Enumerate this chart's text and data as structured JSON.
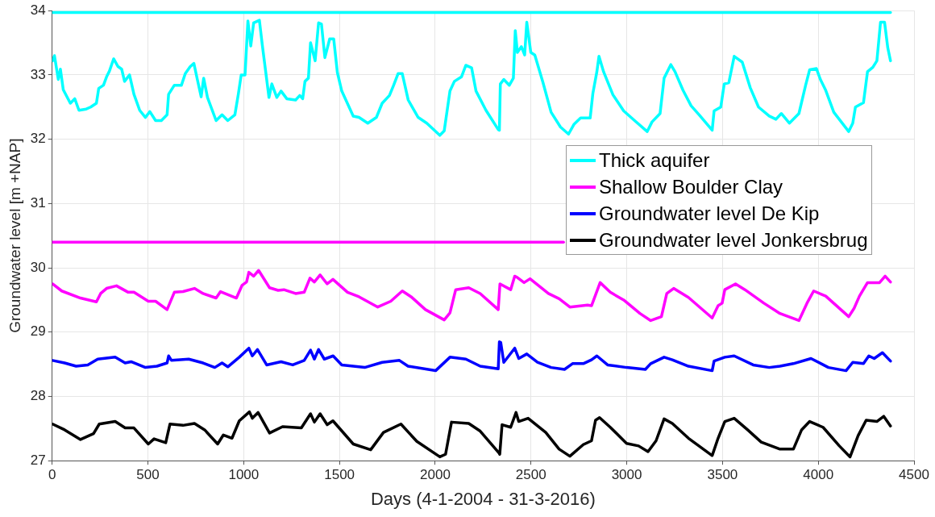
{
  "chart_data": {
    "type": "line",
    "xlabel": "Days (4-1-2004 - 31-3-2016)",
    "ylabel": "Groundwater level [m +NAP]",
    "xlim": [
      0,
      4500
    ],
    "xticks": [
      0,
      500,
      1000,
      1500,
      2000,
      2500,
      3000,
      3500,
      4000,
      4500
    ],
    "ylim": [
      27,
      34
    ],
    "yticks": [
      27,
      28,
      29,
      30,
      31,
      32,
      33,
      34
    ],
    "grid": true,
    "legend": "right",
    "marker": "none",
    "line_style": "solid",
    "series": [
      {
        "color": "#00ffff",
        "x": [
          0,
          4377
        ],
        "values": [
          33.97,
          33.97
        ]
      },
      {
        "color": "#ff00ff",
        "x": [
          0,
          2670
        ],
        "values": [
          30.4,
          30.4
        ]
      },
      {
        "name": "Thick aquifer",
        "color": "#00ffff",
        "x": [
          2,
          12,
          32,
          43,
          58,
          95,
          118,
          140,
          178,
          201,
          231,
          243,
          268,
          284,
          299,
          321,
          344,
          363,
          378,
          404,
          427,
          457,
          487,
          510,
          540,
          570,
          600,
          608,
          638,
          675,
          695,
          721,
          740,
          758,
          778,
          791,
          811,
          856,
          887,
          917,
          954,
          972,
          987,
          1007,
          1022,
          1037,
          1052,
          1082,
          1097,
          1132,
          1147,
          1173,
          1195,
          1225,
          1271,
          1293,
          1308,
          1320,
          1338,
          1349,
          1373,
          1391,
          1406,
          1424,
          1449,
          1470,
          1489,
          1512,
          1572,
          1602,
          1648,
          1693,
          1723,
          1761,
          1783,
          1806,
          1828,
          1859,
          1911,
          1956,
          2024,
          2047,
          2077,
          2100,
          2137,
          2160,
          2190,
          2213,
          2265,
          2329,
          2335,
          2340,
          2358,
          2387,
          2408,
          2418,
          2429,
          2450,
          2467,
          2478,
          2499,
          2520,
          2562,
          2605,
          2654,
          2696,
          2724,
          2759,
          2809,
          2823,
          2844,
          2855,
          2879,
          2928,
          2984,
          3041,
          3107,
          3132,
          3174,
          3195,
          3230,
          3252,
          3294,
          3336,
          3378,
          3446,
          3456,
          3491,
          3509,
          3533,
          3561,
          3603,
          3645,
          3688,
          3744,
          3779,
          3807,
          3849,
          3899,
          3934,
          3955,
          3990,
          4011,
          4039,
          4081,
          4159,
          4180,
          4194,
          4236,
          4257,
          4285,
          4306,
          4325,
          4346,
          4363,
          4377
        ],
        "values": [
          33.22,
          33.3,
          32.93,
          33.09,
          32.77,
          32.56,
          32.63,
          32.45,
          32.47,
          32.5,
          32.56,
          32.79,
          32.84,
          32.97,
          33.06,
          33.25,
          33.13,
          33.09,
          32.9,
          33,
          32.7,
          32.45,
          32.34,
          32.43,
          32.29,
          32.29,
          32.38,
          32.7,
          32.84,
          32.84,
          33.02,
          33.13,
          33.18,
          32.93,
          32.66,
          32.95,
          32.65,
          32.29,
          32.38,
          32.29,
          32.38,
          32.7,
          33,
          33,
          33.84,
          33.45,
          33.81,
          33.85,
          33.47,
          32.65,
          32.86,
          32.65,
          32.75,
          32.63,
          32.61,
          32.68,
          32.63,
          32.9,
          32.95,
          33.5,
          33.22,
          33.81,
          33.79,
          33.27,
          33.56,
          33.56,
          33.04,
          32.75,
          32.36,
          32.34,
          32.25,
          32.34,
          32.56,
          32.68,
          32.84,
          33.02,
          33.02,
          32.61,
          32.34,
          32.25,
          32.06,
          32.13,
          32.75,
          32.9,
          32.97,
          33.15,
          33.11,
          32.75,
          32.45,
          32.15,
          32.14,
          32.86,
          32.93,
          32.84,
          32.95,
          33.69,
          33.35,
          33.44,
          33.31,
          33.82,
          33.35,
          33.31,
          32.89,
          32.42,
          32.19,
          32.08,
          32.23,
          32.33,
          32.33,
          32.71,
          33.05,
          33.29,
          33.05,
          32.69,
          32.44,
          32.29,
          32.12,
          32.27,
          32.4,
          32.95,
          33.16,
          33.05,
          32.76,
          32.52,
          32.38,
          32.14,
          32.44,
          32.5,
          32.86,
          32.88,
          33.29,
          33.2,
          32.8,
          32.5,
          32.36,
          32.31,
          32.4,
          32.25,
          32.4,
          32.84,
          33.08,
          33.1,
          32.93,
          32.76,
          32.42,
          32.12,
          32.25,
          32.5,
          32.57,
          33.05,
          33.12,
          33.22,
          33.82,
          33.82,
          33.42,
          33.22
        ]
      },
      {
        "name": "Shallow Boulder Clay",
        "color": "#ff00ff",
        "x": [
          2,
          50,
          148,
          231,
          253,
          284,
          336,
          397,
          427,
          502,
          540,
          600,
          638,
          683,
          743,
          788,
          856,
          879,
          962,
          992,
          1015,
          1027,
          1052,
          1078,
          1135,
          1180,
          1210,
          1271,
          1316,
          1346,
          1369,
          1399,
          1436,
          1466,
          1542,
          1602,
          1700,
          1768,
          1828,
          1874,
          1949,
          2047,
          2077,
          2107,
          2175,
          2235,
          2329,
          2338,
          2394,
          2415,
          2429,
          2464,
          2495,
          2591,
          2647,
          2703,
          2795,
          2816,
          2861,
          2914,
          2984,
          3069,
          3125,
          3181,
          3209,
          3245,
          3322,
          3446,
          3477,
          3498,
          3512,
          3568,
          3617,
          3716,
          3800,
          3899,
          3941,
          3976,
          4039,
          4159,
          4187,
          4215,
          4257,
          4320,
          4349,
          4377
        ],
        "values": [
          29.75,
          29.64,
          29.53,
          29.47,
          29.6,
          29.68,
          29.72,
          29.62,
          29.62,
          29.48,
          29.48,
          29.35,
          29.62,
          29.63,
          29.68,
          29.6,
          29.53,
          29.63,
          29.53,
          29.73,
          29.78,
          29.93,
          29.87,
          29.96,
          29.69,
          29.65,
          29.66,
          29.6,
          29.62,
          29.84,
          29.78,
          29.89,
          29.75,
          29.82,
          29.62,
          29.55,
          29.39,
          29.48,
          29.64,
          29.55,
          29.35,
          29.19,
          29.3,
          29.66,
          29.69,
          29.6,
          29.35,
          29.75,
          29.66,
          29.87,
          29.85,
          29.77,
          29.83,
          29.6,
          29.52,
          29.39,
          29.42,
          29.41,
          29.77,
          29.62,
          29.5,
          29.29,
          29.18,
          29.24,
          29.6,
          29.68,
          29.54,
          29.22,
          29.41,
          29.45,
          29.66,
          29.75,
          29.66,
          29.45,
          29.29,
          29.18,
          29.45,
          29.64,
          29.56,
          29.24,
          29.37,
          29.56,
          29.77,
          29.77,
          29.87,
          29.78
        ]
      },
      {
        "name": "Groundwater level De Kip",
        "color": "#0000ff",
        "x": [
          2,
          65,
          125,
          186,
          238,
          329,
          381,
          412,
          487,
          547,
          600,
          608,
          623,
          713,
          788,
          849,
          887,
          917,
          977,
          1027,
          1045,
          1072,
          1120,
          1195,
          1256,
          1316,
          1349,
          1369,
          1391,
          1421,
          1467,
          1512,
          1632,
          1723,
          1813,
          1858,
          2002,
          2077,
          2160,
          2235,
          2329,
          2335,
          2342,
          2358,
          2415,
          2436,
          2478,
          2534,
          2605,
          2675,
          2717,
          2773,
          2816,
          2844,
          2900,
          2999,
          3097,
          3125,
          3195,
          3238,
          3322,
          3446,
          3456,
          3512,
          3561,
          3660,
          3744,
          3800,
          3870,
          3962,
          4053,
          4145,
          4180,
          4236,
          4264,
          4292,
          4335,
          4377
        ],
        "values": [
          28.56,
          28.52,
          28.47,
          28.49,
          28.58,
          28.61,
          28.52,
          28.54,
          28.45,
          28.47,
          28.52,
          28.63,
          28.56,
          28.58,
          28.52,
          28.45,
          28.52,
          28.46,
          28.61,
          28.75,
          28.63,
          28.73,
          28.49,
          28.54,
          28.49,
          28.56,
          28.72,
          28.58,
          28.73,
          28.58,
          28.63,
          28.49,
          28.45,
          28.53,
          28.56,
          28.47,
          28.4,
          28.61,
          28.58,
          28.47,
          28.43,
          28.85,
          28.84,
          28.53,
          28.75,
          28.59,
          28.66,
          28.53,
          28.45,
          28.42,
          28.51,
          28.51,
          28.57,
          28.63,
          28.49,
          28.45,
          28.42,
          28.51,
          28.61,
          28.57,
          28.47,
          28.4,
          28.55,
          28.61,
          28.63,
          28.49,
          28.45,
          28.47,
          28.51,
          28.59,
          28.45,
          28.4,
          28.53,
          28.51,
          28.63,
          28.59,
          28.68,
          28.55
        ]
      },
      {
        "name": "Groundwater level Jonkersbrug",
        "color": "#000000",
        "x": [
          2,
          65,
          148,
          216,
          246,
          329,
          381,
          427,
          502,
          532,
          593,
          615,
          683,
          743,
          796,
          864,
          894,
          939,
          977,
          1030,
          1045,
          1075,
          1135,
          1203,
          1301,
          1349,
          1369,
          1399,
          1436,
          1466,
          1572,
          1663,
          1730,
          1821,
          1904,
          2024,
          2054,
          2085,
          2175,
          2235,
          2333,
          2337,
          2349,
          2394,
          2422,
          2436,
          2485,
          2577,
          2647,
          2703,
          2773,
          2816,
          2837,
          2858,
          2914,
          2999,
          3062,
          3111,
          3153,
          3195,
          3238,
          3322,
          3446,
          3477,
          3512,
          3561,
          3631,
          3702,
          3800,
          3870,
          3913,
          3955,
          4025,
          4110,
          4166,
          4208,
          4250,
          4306,
          4342,
          4377
        ],
        "values": [
          27.57,
          27.48,
          27.33,
          27.42,
          27.57,
          27.61,
          27.51,
          27.51,
          27.26,
          27.34,
          27.28,
          27.57,
          27.55,
          27.58,
          27.48,
          27.26,
          27.4,
          27.35,
          27.62,
          27.76,
          27.66,
          27.75,
          27.43,
          27.53,
          27.51,
          27.73,
          27.6,
          27.73,
          27.56,
          27.62,
          27.26,
          27.17,
          27.44,
          27.57,
          27.3,
          27.06,
          27.1,
          27.6,
          27.58,
          27.46,
          27.12,
          27.1,
          27.56,
          27.52,
          27.75,
          27.61,
          27.66,
          27.44,
          27.18,
          27.07,
          27.25,
          27.31,
          27.63,
          27.67,
          27.52,
          27.27,
          27.23,
          27.14,
          27.31,
          27.65,
          27.58,
          27.35,
          27.08,
          27.35,
          27.61,
          27.66,
          27.48,
          27.29,
          27.18,
          27.18,
          27.48,
          27.61,
          27.52,
          27.23,
          27.06,
          27.39,
          27.63,
          27.61,
          27.69,
          27.54
        ]
      }
    ]
  }
}
